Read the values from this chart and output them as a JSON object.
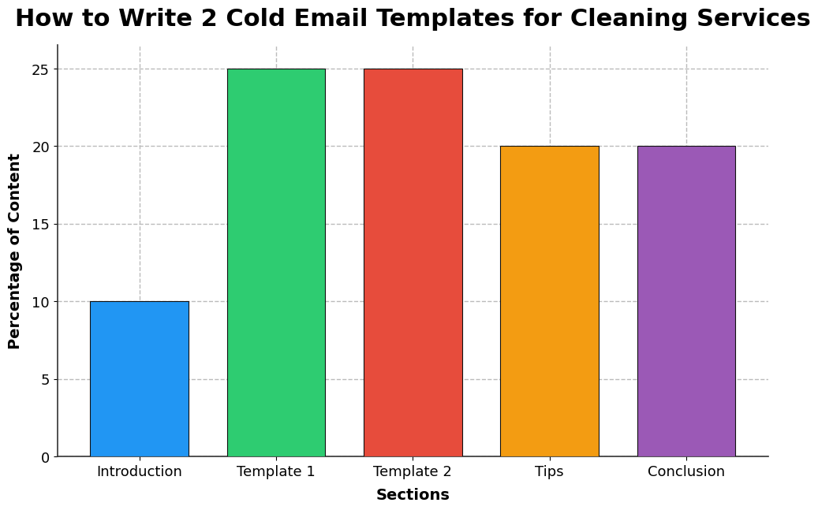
{
  "title": "How to Write 2 Cold Email Templates for Cleaning Services",
  "categories": [
    "Introduction",
    "Template 1",
    "Template 2",
    "Tips",
    "Conclusion"
  ],
  "values": [
    10,
    25,
    25,
    20,
    20
  ],
  "bar_colors": [
    "#2196F3",
    "#2ECC71",
    "#E74C3C",
    "#F39C12",
    "#9B59B6"
  ],
  "xlabel": "Sections",
  "ylabel": "Percentage of Content",
  "ylim": [
    0,
    26.5
  ],
  "yticks": [
    0,
    5,
    10,
    15,
    20,
    25
  ],
  "title_fontsize": 22,
  "axis_label_fontsize": 14,
  "tick_fontsize": 13,
  "grid_color": "#BBBBBB",
  "background_color": "#FFFFFF",
  "bar_edge_color": "#111111",
  "bar_edge_width": 0.8,
  "bar_width": 0.72
}
